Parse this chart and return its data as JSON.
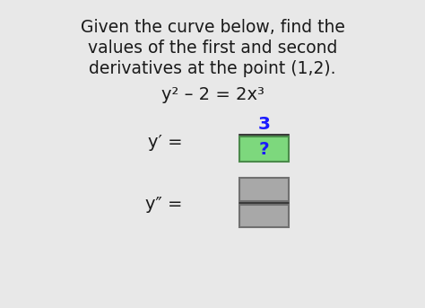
{
  "background_color": "#e8e8e8",
  "title_line1": "Given the curve below, find the",
  "title_line2": "values of the first and second",
  "title_line3": "derivatives at the point (1,2).",
  "equation": "y² – 2 = 2x³",
  "yp_label": "y′ = ",
  "ypp_label": "y″ = ",
  "numerator_text": "3",
  "numerator_color": "#1a1aff",
  "box_green_color": "#7dd87d",
  "box_green_border": "#4a8a4a",
  "box_gray_color": "#a8a8a8",
  "box_gray_border": "#707070",
  "question_mark": "?",
  "question_mark_color": "#1a1aff",
  "text_color": "#1a1a1a",
  "font_size_title": 13.5,
  "font_size_eq": 13.5,
  "font_size_deriv": 13.5
}
